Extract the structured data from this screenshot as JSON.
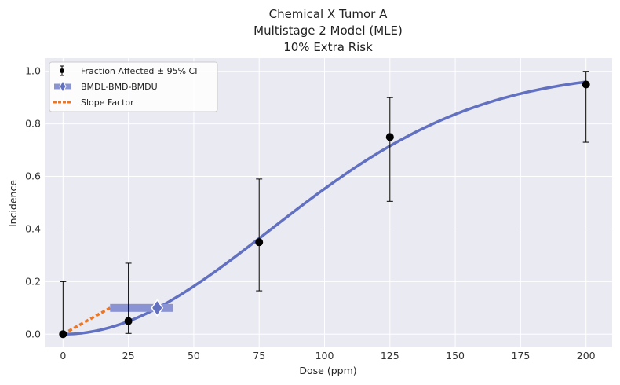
{
  "chart_data": {
    "type": "scatter",
    "title_lines": [
      "Chemical X Tumor A",
      "Multistage 2 Model (MLE)",
      "10% Extra Risk"
    ],
    "xlabel": "Dose (ppm)",
    "ylabel": "Incidence",
    "xlim": [
      -7,
      210
    ],
    "ylim": [
      -0.05,
      1.05
    ],
    "x_ticks": [
      0,
      25,
      50,
      75,
      100,
      125,
      150,
      175,
      200
    ],
    "y_ticks": [
      0.0,
      0.2,
      0.4,
      0.6,
      0.8,
      1.0
    ],
    "y_tick_labels": [
      "0.0",
      "0.2",
      "0.4",
      "0.6",
      "0.8",
      "1.0"
    ],
    "grid": true,
    "legend_position": "top-left",
    "legend": [
      "Fraction Affected ± 95% CI",
      "BMDL-BMD-BMDU",
      "Slope Factor"
    ],
    "observed": [
      {
        "dose": 0,
        "fraction": 0.0,
        "ci_low": 0.0,
        "ci_high": 0.2
      },
      {
        "dose": 25,
        "fraction": 0.05,
        "ci_low": 0.003,
        "ci_high": 0.27
      },
      {
        "dose": 75,
        "fraction": 0.35,
        "ci_low": 0.165,
        "ci_high": 0.59
      },
      {
        "dose": 125,
        "fraction": 0.75,
        "ci_low": 0.505,
        "ci_high": 0.9
      },
      {
        "dose": 200,
        "fraction": 0.95,
        "ci_low": 0.73,
        "ci_high": 1.0
      }
    ],
    "model": {
      "name": "Multistage 2",
      "background": 0.0,
      "beta1": 0.0,
      "beta2": 8.05e-05,
      "x_range": [
        0,
        200
      ]
    },
    "bmd": {
      "bmdl": 18,
      "bmd": 36,
      "bmdu": 42,
      "response": 0.1
    },
    "slope_factor_line": {
      "x": [
        0,
        18
      ],
      "y": [
        0.0,
        0.1
      ]
    },
    "colors": {
      "background": "#eaeaf2",
      "grid": "#ffffff",
      "model": "#6270c0",
      "bmd": "#8a93d3",
      "slope": "#ee7621",
      "points": "#000000"
    }
  }
}
